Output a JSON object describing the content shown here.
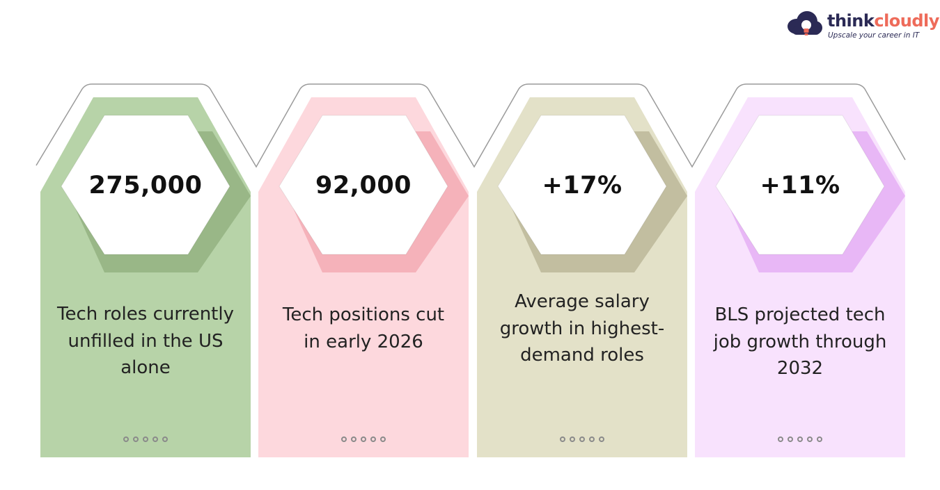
{
  "brand": {
    "name_part1": "think",
    "name_part2": "cloudly",
    "tagline": "Upscale your career in IT",
    "color_dark": "#2b2a55",
    "color_accent": "#ee6b5a",
    "icon": "cloud-bulb-icon"
  },
  "cards": [
    {
      "stat": "275,000",
      "description": "Tech roles currently unfilled in the US alone",
      "color": "#b7d3a8",
      "shade": "#8fae7c",
      "pagination_dots": 5
    },
    {
      "stat": "92,000",
      "description": "Tech positions cut in early 2026",
      "color": "#fdd8dd",
      "shade": "#f2a6ad",
      "pagination_dots": 5
    },
    {
      "stat": "+17%",
      "description": "Average salary growth in highest-demand roles",
      "color": "#e3e1c8",
      "shade": "#b7b193",
      "pagination_dots": 5
    },
    {
      "stat": "+11%",
      "description": "BLS projected tech job growth through 2032",
      "color": "#f8e2fd",
      "shade": "#e3a8f3",
      "pagination_dots": 5
    }
  ]
}
